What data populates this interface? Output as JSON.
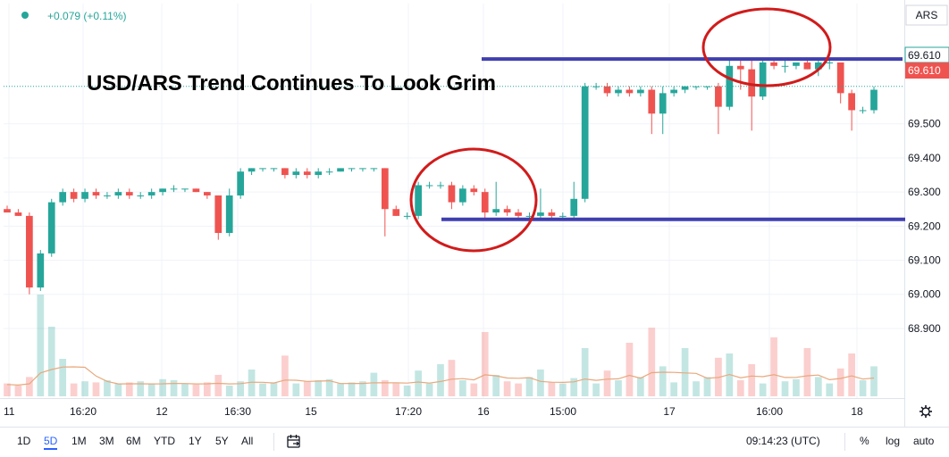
{
  "header": {
    "change": "+0.079 (+0.11%)"
  },
  "overlay_title": "USD/ARS Trend Continues To Look Grim",
  "price_scale": {
    "symbol_badge": "ARS",
    "last_price_label": "69.610",
    "last_price_label_2": "69.610",
    "ticks": [
      "69.500",
      "69.400",
      "69.300",
      "69.200",
      "69.100",
      "69.000",
      "68.900"
    ]
  },
  "time_axis": {
    "labels": [
      "11",
      "16:20",
      "12",
      "16:30",
      "15",
      "17:20",
      "16",
      "15:00",
      "17",
      "16:00",
      "18"
    ]
  },
  "colors": {
    "up": "#26a69a",
    "down": "#ef5350",
    "annotation_line": "#3f3fb0",
    "annotation_circle": "#d11b1b",
    "ma_line": "#e8a87c"
  },
  "bottom_bar": {
    "ranges": [
      "1D",
      "5D",
      "1M",
      "3M",
      "6M",
      "YTD",
      "1Y",
      "5Y",
      "All"
    ],
    "active_range": "5D",
    "compare_icon": "calendar-range-icon",
    "clock": "09:14:23 (UTC)",
    "percent": "%",
    "log": "log",
    "auto": "auto"
  },
  "chart_data": {
    "type": "candlestick",
    "title": "USD/ARS Trend Continues To Look Grim",
    "ylim": [
      68.82,
      69.82
    ],
    "last_price": 69.61,
    "candles": [
      [
        69.25,
        69.26,
        69.24,
        69.24
      ],
      [
        69.24,
        69.25,
        69.23,
        69.23
      ],
      [
        69.23,
        69.24,
        69.0,
        69.02
      ],
      [
        69.02,
        69.13,
        69.01,
        69.12
      ],
      [
        69.12,
        69.28,
        69.11,
        69.27
      ],
      [
        69.27,
        69.31,
        69.26,
        69.3
      ],
      [
        69.3,
        69.31,
        69.27,
        69.28
      ],
      [
        69.28,
        69.31,
        69.27,
        69.3
      ],
      [
        69.3,
        69.31,
        69.28,
        69.29
      ],
      [
        69.29,
        69.3,
        69.28,
        69.29
      ],
      [
        69.29,
        69.31,
        69.28,
        69.3
      ],
      [
        69.3,
        69.31,
        69.28,
        69.29
      ],
      [
        69.29,
        69.3,
        69.28,
        69.29
      ],
      [
        69.29,
        69.31,
        69.28,
        69.3
      ],
      [
        69.3,
        69.31,
        69.29,
        69.31
      ],
      [
        69.31,
        69.32,
        69.3,
        69.31
      ],
      [
        69.31,
        69.31,
        69.3,
        69.31
      ],
      [
        69.31,
        69.31,
        69.3,
        69.3
      ],
      [
        69.3,
        69.3,
        69.28,
        69.29
      ],
      [
        69.29,
        69.29,
        69.16,
        69.18
      ],
      [
        69.18,
        69.31,
        69.17,
        69.29
      ],
      [
        69.29,
        69.37,
        69.28,
        69.36
      ],
      [
        69.36,
        69.37,
        69.35,
        69.37
      ],
      [
        69.37,
        69.37,
        69.36,
        69.37
      ],
      [
        69.37,
        69.37,
        69.36,
        69.37
      ],
      [
        69.37,
        69.37,
        69.34,
        69.35
      ],
      [
        69.35,
        69.37,
        69.34,
        69.36
      ],
      [
        69.36,
        69.37,
        69.34,
        69.35
      ],
      [
        69.35,
        69.37,
        69.34,
        69.36
      ],
      [
        69.36,
        69.37,
        69.35,
        69.36
      ],
      [
        69.36,
        69.37,
        69.36,
        69.37
      ],
      [
        69.37,
        69.37,
        69.36,
        69.37
      ],
      [
        69.37,
        69.37,
        69.36,
        69.37
      ],
      [
        69.37,
        69.37,
        69.36,
        69.37
      ],
      [
        69.37,
        69.37,
        69.17,
        69.25
      ],
      [
        69.25,
        69.26,
        69.23,
        69.23
      ],
      [
        69.23,
        69.24,
        69.22,
        69.23
      ],
      [
        69.23,
        69.33,
        69.22,
        69.32
      ],
      [
        69.32,
        69.33,
        69.31,
        69.32
      ],
      [
        69.32,
        69.33,
        69.31,
        69.32
      ],
      [
        69.32,
        69.33,
        69.25,
        69.27
      ],
      [
        69.27,
        69.32,
        69.26,
        69.31
      ],
      [
        69.31,
        69.32,
        69.29,
        69.3
      ],
      [
        69.3,
        69.31,
        69.22,
        69.24
      ],
      [
        69.24,
        69.33,
        69.23,
        69.25
      ],
      [
        69.25,
        69.26,
        69.23,
        69.24
      ],
      [
        69.24,
        69.25,
        69.22,
        69.23
      ],
      [
        69.23,
        69.24,
        69.22,
        69.23
      ],
      [
        69.23,
        69.31,
        69.22,
        69.24
      ],
      [
        69.24,
        69.25,
        69.22,
        69.23
      ],
      [
        69.23,
        69.24,
        69.22,
        69.23
      ],
      [
        69.23,
        69.33,
        69.22,
        69.28
      ],
      [
        69.28,
        69.62,
        69.27,
        69.61
      ],
      [
        69.61,
        69.62,
        69.6,
        69.61
      ],
      [
        69.61,
        69.62,
        69.58,
        69.59
      ],
      [
        69.59,
        69.61,
        69.58,
        69.6
      ],
      [
        69.6,
        69.61,
        69.58,
        69.59
      ],
      [
        69.59,
        69.61,
        69.58,
        69.6
      ],
      [
        69.6,
        69.61,
        69.47,
        69.53
      ],
      [
        69.53,
        69.61,
        69.47,
        69.59
      ],
      [
        69.59,
        69.61,
        69.58,
        69.6
      ],
      [
        69.6,
        69.61,
        69.59,
        69.61
      ],
      [
        69.61,
        69.61,
        69.6,
        69.61
      ],
      [
        69.61,
        69.61,
        69.6,
        69.61
      ],
      [
        69.61,
        69.62,
        69.47,
        69.55
      ],
      [
        69.55,
        69.69,
        69.54,
        69.67
      ],
      [
        69.67,
        69.69,
        69.6,
        69.66
      ],
      [
        69.66,
        69.69,
        69.48,
        69.58
      ],
      [
        69.58,
        69.69,
        69.57,
        69.68
      ],
      [
        69.68,
        69.69,
        69.66,
        69.67
      ],
      [
        69.67,
        69.69,
        69.65,
        69.67
      ],
      [
        69.67,
        69.68,
        69.66,
        69.68
      ],
      [
        69.68,
        69.69,
        69.66,
        69.66
      ],
      [
        69.66,
        69.69,
        69.64,
        69.68
      ],
      [
        69.68,
        69.69,
        69.66,
        69.68
      ],
      [
        69.68,
        69.68,
        69.56,
        69.59
      ],
      [
        69.59,
        69.6,
        69.48,
        69.54
      ],
      [
        69.54,
        69.55,
        69.53,
        69.54
      ],
      [
        69.54,
        69.61,
        69.53,
        69.6
      ]
    ],
    "volume": [
      12,
      10,
      18,
      95,
      65,
      35,
      12,
      14,
      13,
      15,
      12,
      13,
      14,
      12,
      16,
      15,
      12,
      11,
      13,
      20,
      10,
      14,
      25,
      12,
      13,
      38,
      12,
      14,
      15,
      16,
      12,
      13,
      14,
      22,
      15,
      12,
      10,
      24,
      12,
      30,
      34,
      15,
      12,
      60,
      20,
      14,
      12,
      18,
      25,
      13,
      12,
      17,
      45,
      12,
      24,
      15,
      50,
      18,
      64,
      28,
      13,
      45,
      14,
      18,
      36,
      40,
      15,
      30,
      12,
      55,
      14,
      16,
      45,
      18,
      12,
      26,
      40,
      15,
      28
    ],
    "xlabels": [
      "11",
      "16:20",
      "12",
      "16:30",
      "15",
      "17:20",
      "16",
      "15:00",
      "17",
      "16:00",
      "18"
    ],
    "annotations": {
      "resistance": 69.69,
      "support": 69.22
    }
  }
}
